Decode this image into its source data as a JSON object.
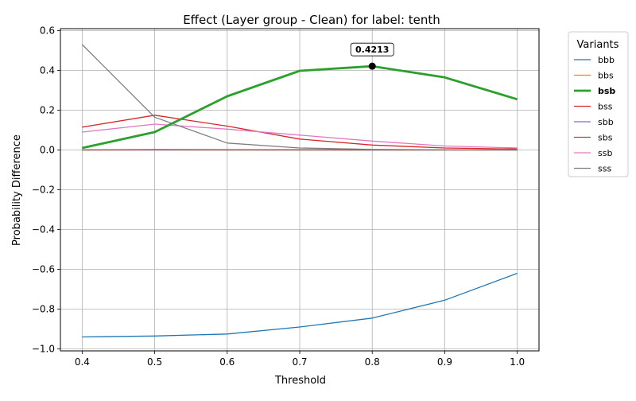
{
  "chart_data": {
    "type": "line",
    "title": "Effect (Layer group - Clean) for label: tenth",
    "xlabel": "Threshold",
    "ylabel": "Probability Difference",
    "x": [
      0.4,
      0.5,
      0.6,
      0.7,
      0.8,
      0.9,
      1.0
    ],
    "xticks": [
      "0.4",
      "0.5",
      "0.6",
      "0.7",
      "0.8",
      "0.9",
      "1.0"
    ],
    "xlim": [
      0.37,
      1.03
    ],
    "yticks": [
      "0.6",
      "0.4",
      "0.2",
      "0.0",
      "−0.2",
      "−0.4",
      "−0.6",
      "−0.8",
      "−1.0"
    ],
    "ytick_values": [
      0.6,
      0.4,
      0.2,
      0.0,
      -0.2,
      -0.4,
      -0.6,
      -0.8,
      -1.0
    ],
    "ylim": [
      -1.01,
      0.61
    ],
    "grid": true,
    "legend_title": "Variants",
    "legend_position": "outside-right",
    "highlight_series": "bsb",
    "annotation": {
      "x": 0.8,
      "y": 0.4213,
      "label": "0.4213"
    },
    "series": [
      {
        "name": "bbb",
        "color": "#1f77b4",
        "values": [
          -0.94,
          -0.935,
          -0.925,
          -0.89,
          -0.845,
          -0.755,
          -0.62
        ]
      },
      {
        "name": "bbs",
        "color": "#ff7f0e",
        "values": [
          0.0,
          0.0,
          0.0,
          0.0,
          0.0,
          0.0,
          0.0
        ]
      },
      {
        "name": "bsb",
        "color": "#2ca02c",
        "values": [
          0.01,
          0.09,
          0.27,
          0.398,
          0.4213,
          0.365,
          0.255
        ]
      },
      {
        "name": "bss",
        "color": "#d62728",
        "values": [
          0.115,
          0.175,
          0.12,
          0.055,
          0.025,
          0.01,
          0.005
        ]
      },
      {
        "name": "sbb",
        "color": "#9467bd",
        "values": [
          0.0,
          0.0,
          0.0,
          0.0,
          0.0,
          0.0,
          0.0
        ]
      },
      {
        "name": "sbs",
        "color": "#8c564b",
        "values": [
          0.0,
          0.002,
          0.001,
          0.001,
          0.0,
          0.0,
          0.0
        ]
      },
      {
        "name": "ssb",
        "color": "#e377c2",
        "values": [
          0.09,
          0.13,
          0.105,
          0.075,
          0.045,
          0.02,
          0.01
        ]
      },
      {
        "name": "sss",
        "color": "#7f7f7f",
        "values": [
          0.53,
          0.165,
          0.035,
          0.01,
          0.003,
          0.001,
          0.0
        ]
      }
    ]
  }
}
